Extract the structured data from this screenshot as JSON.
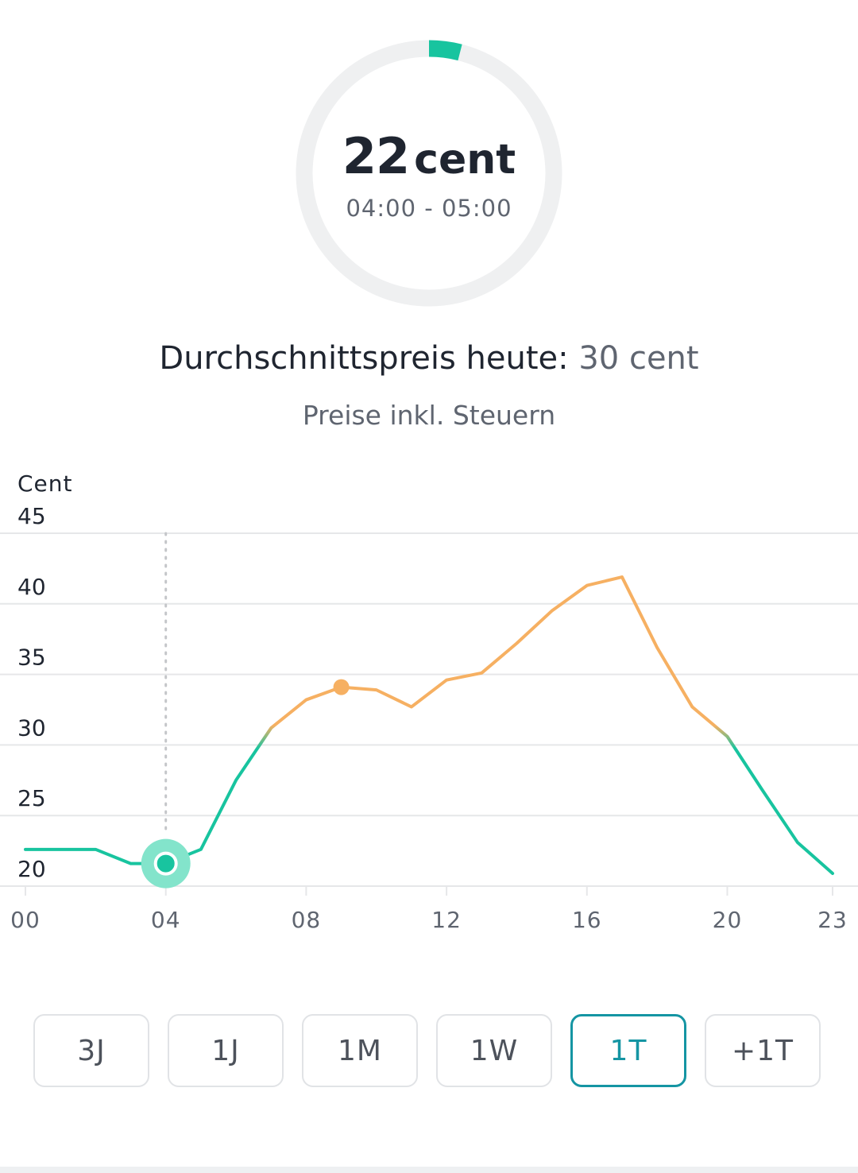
{
  "current_price": {
    "value": "22",
    "unit": "cent",
    "time_range": "04:00 - 05:00",
    "progress_fraction": 0.04,
    "ring_color": "#18c49f",
    "track_color": "#eff0f1"
  },
  "summary": {
    "avg_label": "Durchschnittspreis heute:",
    "avg_value": "30 cent",
    "tax_note": "Preise inkl. Steuern"
  },
  "chart_data": {
    "type": "line",
    "ylabel": "Cent",
    "ylim": [
      20,
      45
    ],
    "yticks": [
      "20",
      "25",
      "30",
      "35",
      "40",
      "45"
    ],
    "xlim": [
      0,
      23
    ],
    "xticks": [
      "00",
      "04",
      "08",
      "12",
      "16",
      "20",
      "23"
    ],
    "grid": true,
    "x": [
      0,
      1,
      2,
      3,
      4,
      5,
      6,
      7,
      8,
      9,
      10,
      11,
      12,
      13,
      14,
      15,
      16,
      17,
      18,
      19,
      20,
      21,
      22,
      23
    ],
    "values": [
      22.6,
      22.6,
      22.6,
      21.6,
      21.6,
      22.6,
      27.5,
      31.2,
      33.2,
      34.1,
      33.9,
      32.7,
      34.6,
      35.1,
      37.2,
      39.5,
      41.3,
      41.9,
      36.9,
      32.7,
      30.6,
      26.8,
      23.1,
      20.9
    ],
    "current_hour": 4,
    "max_marker_hour": 9,
    "colors": {
      "cheap": "#18c49f",
      "expensive": "#f6b062",
      "current_halo": "#83e4cb",
      "grid": "#e6e7e9"
    }
  },
  "range_buttons": [
    {
      "label": "3J",
      "active": false
    },
    {
      "label": "1J",
      "active": false
    },
    {
      "label": "1M",
      "active": false
    },
    {
      "label": "1W",
      "active": false
    },
    {
      "label": "1T",
      "active": true
    },
    {
      "label": "+1T",
      "active": false
    }
  ]
}
